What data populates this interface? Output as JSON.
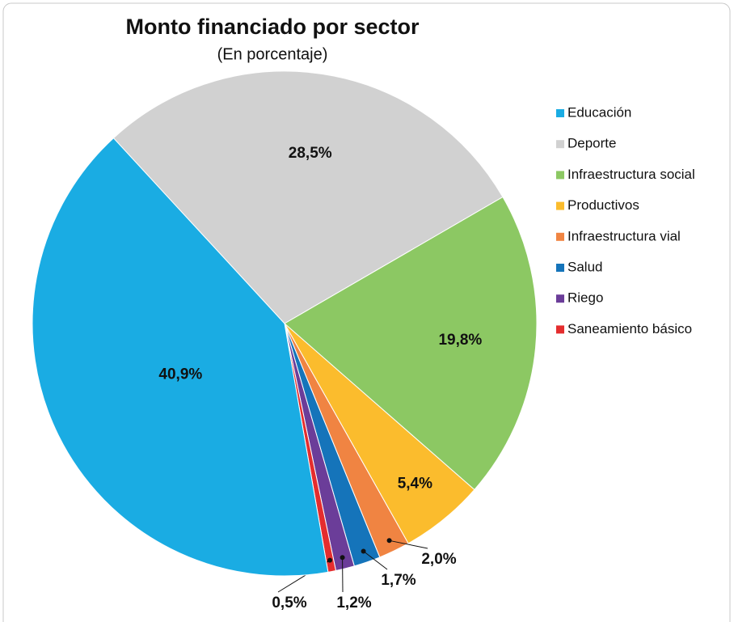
{
  "chart_data": {
    "type": "pie",
    "title": "Monto financiado por sector",
    "subtitle": "(En porcentaje)",
    "categories": [
      "Educación",
      "Deporte",
      "Infraestructura social",
      "Productivos",
      "Infraestructura vial",
      "Salud",
      "Riego",
      "Saneamiento básico"
    ],
    "values": [
      40.9,
      28.5,
      19.8,
      5.4,
      2.0,
      1.7,
      1.2,
      0.5
    ],
    "value_labels": [
      "40,9%",
      "28,5%",
      "19,8%",
      "5,4%",
      "2,0%",
      "1,7%",
      "1,2%",
      "0,5%"
    ],
    "colors": [
      "#1aace3",
      "#d1d1d1",
      "#8cc863",
      "#fbbc2d",
      "#f08442",
      "#1574ba",
      "#6b3d99",
      "#e42d2e"
    ],
    "legend": "right"
  }
}
